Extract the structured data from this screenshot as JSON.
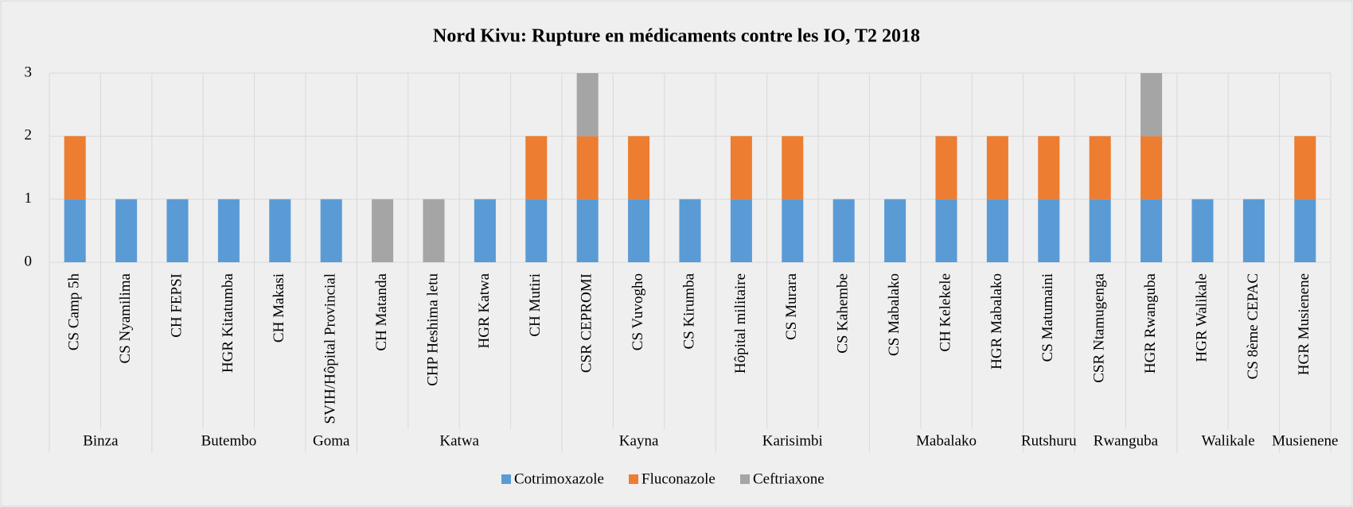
{
  "chart_data": {
    "type": "stacked_bar",
    "title": "Nord Kivu: Rupture en médicaments contre les IO, T2 2018",
    "categories": [
      "CS Camp 5h",
      "CS Nyamilima",
      "CH FEPSI",
      "HGR Kitatumba",
      "CH Makasi",
      "SVIH/Hôpital Provincial",
      "CH Matanda",
      "CHP Heshima letu",
      "HGR Katwa",
      "CH Mutiri",
      "CSR CEPROMI",
      "CS Vuvogho",
      "CS Kirumba",
      "Hôpital militaire",
      "CS Murara",
      "CS Kahembe",
      "CS Mabalako",
      "CH Kelekele",
      "HGR Mabalako",
      "CS Matumaini",
      "CSR Ntamugenga",
      "HGR Rwanguba",
      "HGR Walikale",
      "CS 8ème CEPAC",
      "HGR Musienene"
    ],
    "category_groups": [
      "Binza",
      "Binza",
      "Butembo",
      "Butembo",
      "Butembo",
      "Goma",
      "Katwa",
      "Katwa",
      "Katwa",
      "Katwa",
      "Kayna",
      "Kayna",
      "Kayna",
      "Karisimbi",
      "Karisimbi",
      "Karisimbi",
      "Mabalako",
      "Mabalako",
      "Mabalako",
      "Rutshuru",
      "Rwanguba",
      "Rwanguba",
      "Walikale",
      "Walikale",
      "Musienene"
    ],
    "series": [
      {
        "name": "Cotrimoxazole",
        "color": "#5b9bd5",
        "values": [
          1,
          1,
          1,
          1,
          1,
          1,
          null,
          null,
          1,
          1,
          1,
          1,
          1,
          1,
          1,
          1,
          1,
          1,
          1,
          1,
          1,
          1,
          1,
          1,
          1
        ]
      },
      {
        "name": "Fluconazole",
        "color": "#ed7d31",
        "values": [
          1,
          null,
          null,
          null,
          null,
          null,
          null,
          null,
          null,
          1,
          1,
          1,
          null,
          1,
          1,
          null,
          null,
          1,
          1,
          1,
          1,
          1,
          null,
          null,
          1
        ]
      },
      {
        "name": "Ceftriaxone",
        "color": "#a5a5a5",
        "values": [
          null,
          null,
          null,
          null,
          null,
          null,
          1,
          1,
          null,
          null,
          1,
          null,
          null,
          null,
          null,
          null,
          null,
          null,
          null,
          null,
          null,
          1,
          null,
          null,
          null
        ]
      }
    ],
    "ylim": [
      0,
      3
    ],
    "yticks": [
      0,
      1,
      2,
      3
    ],
    "grid": true,
    "legend": "bottom"
  }
}
